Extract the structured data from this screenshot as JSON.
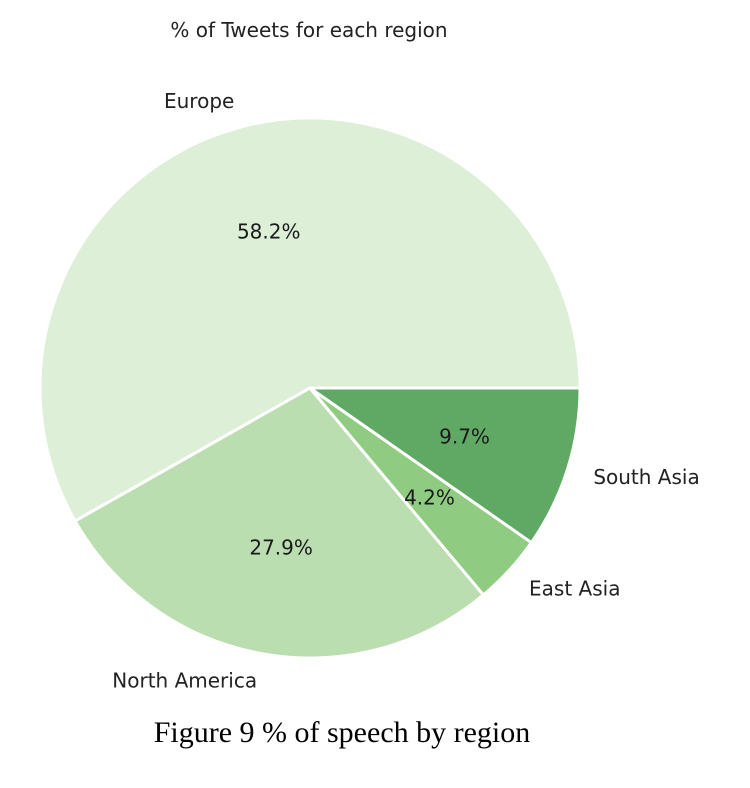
{
  "chart_data": {
    "type": "pie",
    "title": "% of Tweets for each region",
    "categories": [
      "Europe",
      "North America",
      "East Asia",
      "South Asia"
    ],
    "values": [
      58.2,
      27.9,
      4.2,
      9.7
    ],
    "value_labels": [
      "58.2%",
      "27.9%",
      "4.2%",
      "9.7%"
    ],
    "colors": [
      "#deefd8",
      "#bbdeb0",
      "#8fcb80",
      "#5fa964"
    ],
    "edge_color": "#ffffff",
    "start_angle_deg": 0,
    "direction": "counterclockwise"
  },
  "caption": "Figure 9 % of speech by region"
}
